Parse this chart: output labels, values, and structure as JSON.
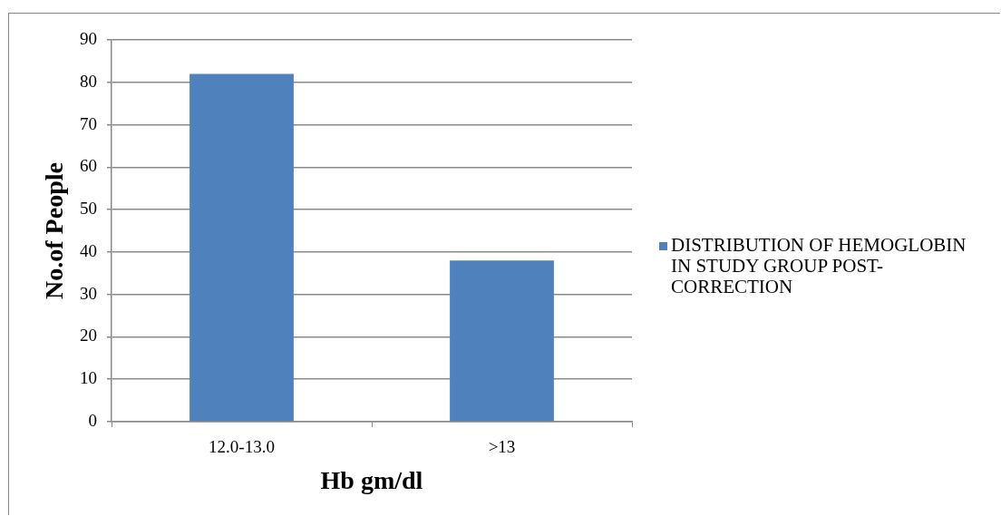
{
  "chart_data": {
    "type": "bar",
    "xlabel": "Hb gm/dl",
    "ylabel": "No.of People",
    "categories": [
      "12.0-13.0",
      ">13"
    ],
    "series": [
      {
        "name": "DISTRIBUTION OF HEMOGLOBIN IN STUDY GROUP POST-CORRECTION",
        "color": "#4f81bd",
        "values": [
          82,
          38
        ]
      }
    ],
    "ylim": [
      0,
      90
    ],
    "yticks": [
      0,
      10,
      20,
      30,
      40,
      50,
      60,
      70,
      80,
      90
    ],
    "grid": "y",
    "legend": "right"
  }
}
